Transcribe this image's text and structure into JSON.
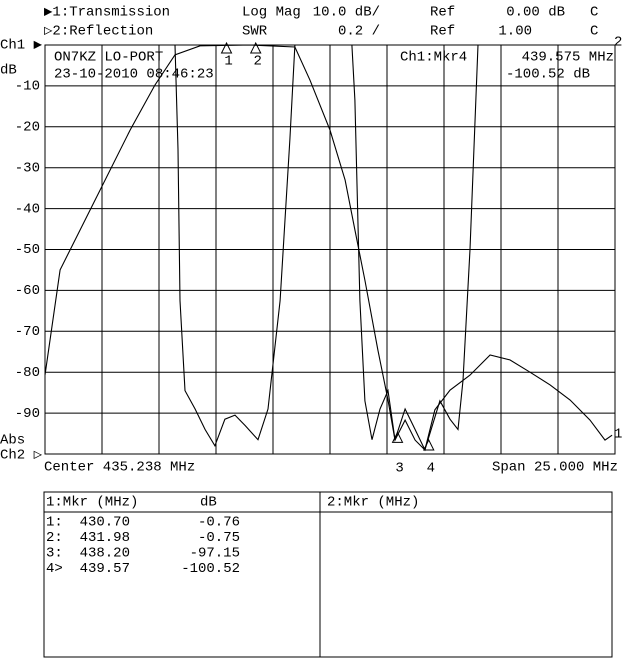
{
  "chart_data": {
    "type": "line",
    "header": {
      "ch1": [
        "▶1:Transmission",
        "Log Mag",
        "10.0 dB/",
        "Ref",
        "0.00 dB",
        "C"
      ],
      "ch2": [
        "▷2:Reflection",
        "SWR",
        "0.2 /",
        "Ref",
        "1.00",
        "C"
      ]
    },
    "left_labels": {
      "ch1": "Ch1 ▶",
      "unit": "dB",
      "abs": "Abs",
      "ch2": "Ch2 ▷"
    },
    "annotations": {
      "station": "ON7KZ LO-PORT",
      "timestamp": "23-10-2010 08:46:23",
      "marker_title": "Ch1:Mkr4",
      "marker_freq": "439.575 MHz",
      "marker_value": "-100.52 dB",
      "trace1_end": "1",
      "trace2_end": "2"
    },
    "center": "Center 435.238 MHz",
    "span": "Span 25.000 MHz",
    "xlim": [
      422.738,
      447.738
    ],
    "ylim": [
      -100,
      0
    ],
    "yticks": [
      -10,
      -20,
      -30,
      -40,
      -50,
      -60,
      -70,
      -80,
      -90
    ],
    "y2lim": [
      1,
      3
    ],
    "grid": true,
    "series": [
      {
        "name": "Transmission",
        "color": "#000000",
        "x": [
          422.74,
          423.4,
          425.15,
          426.47,
          427.56,
          428.44,
          429.54,
          431.73,
          433.7,
          434.36,
          435.24,
          435.9,
          436.33,
          436.77,
          437.34,
          437.78,
          438.09,
          438.53,
          438.97,
          439.4,
          439.84,
          440.5,
          441.38,
          442.26,
          443.13,
          444.01,
          444.89,
          445.77,
          446.64,
          447.3,
          447.61
        ],
        "values": [
          -80.7,
          -55.0,
          -35.5,
          -20.8,
          -9.8,
          -2.4,
          -0.2,
          0,
          -0.5,
          -8.6,
          -20.8,
          -33.0,
          -45.2,
          -57.5,
          -74.6,
          -86.8,
          -96.6,
          -91.7,
          -96.6,
          -99.0,
          -89.2,
          -84.4,
          -80.7,
          -75.8,
          -77.0,
          -80.0,
          -83.1,
          -86.8,
          -91.7,
          -96.6,
          -95.4
        ]
      },
      {
        "name": "Reflection",
        "color": "#000000",
        "axis": "y2",
        "x": [
          428.44,
          428.57,
          428.66,
          428.88,
          429.32,
          429.76,
          430.19,
          430.63,
          431.07,
          431.51,
          432.08,
          432.52,
          433.05,
          433.48,
          433.7,
          436.2,
          436.33,
          436.55,
          436.77,
          437.08,
          437.43,
          437.78,
          438.09,
          438.53,
          438.97,
          439.4,
          440.06,
          440.5,
          440.85,
          441.07,
          441.38,
          441.73,
          447.74
        ],
        "values": [
          3.0,
          2.49,
          1.75,
          1.31,
          1.22,
          1.12,
          1.04,
          1.17,
          1.19,
          1.14,
          1.07,
          1.22,
          1.75,
          2.54,
          3.0,
          3.0,
          2.73,
          1.75,
          1.26,
          1.07,
          1.22,
          1.31,
          1.07,
          1.22,
          1.12,
          1.02,
          1.26,
          1.17,
          1.12,
          1.36,
          2.0,
          3.0,
          3.0
        ]
      }
    ],
    "marker_table": {
      "headers": [
        "1:Mkr (MHz)",
        "dB",
        "2:Mkr (MHz)"
      ],
      "markers": [
        {
          "id": "1",
          "row": "1:",
          "freq": 430.7,
          "freq_label": "430.70",
          "db": -0.76
        },
        {
          "id": "2",
          "row": "2:",
          "freq": 431.98,
          "db": -0.75
        },
        {
          "id": "3",
          "row": "3:",
          "freq": 438.2,
          "freq_label": "438.20",
          "db": -97.15
        },
        {
          "id": "4",
          "row": "4>",
          "freq": 439.57,
          "db": -100.52
        }
      ]
    }
  }
}
